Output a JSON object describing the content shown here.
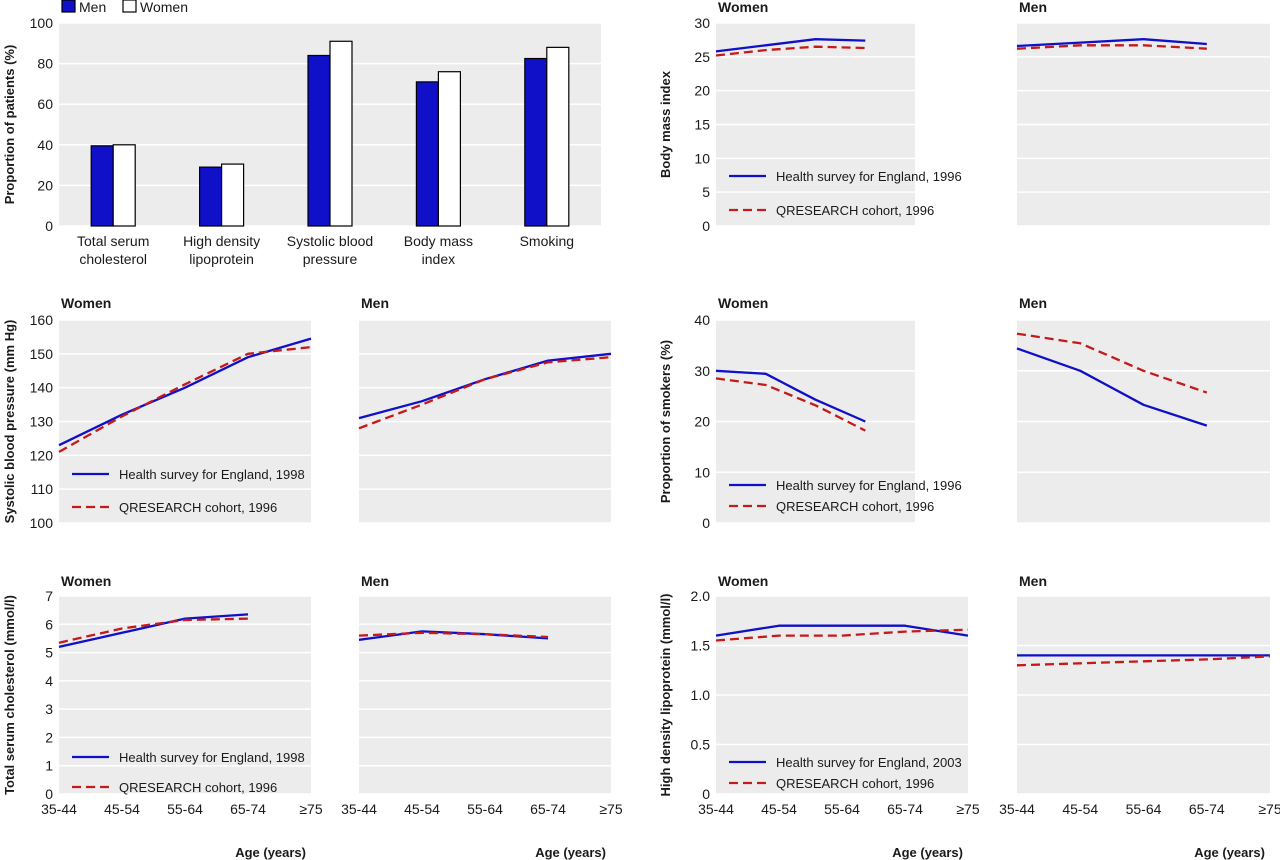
{
  "colors": {
    "plot_bg": "#ececec",
    "grid": "#ffffff",
    "hse_line": "#1010c8",
    "qr_line": "#c41a1a",
    "men_bar": "#1010c8",
    "women_bar": "#ffffff"
  },
  "chart_data": [
    {
      "type": "bar",
      "legend": [
        "Men",
        "Women"
      ],
      "legend_position": "top-left",
      "categories": [
        [
          "Total serum",
          "cholesterol"
        ],
        [
          "High density",
          "lipoprotein"
        ],
        [
          "Systolic blood",
          "pressure"
        ],
        [
          "Body mass",
          "index"
        ],
        [
          "Smoking"
        ]
      ],
      "series": [
        {
          "name": "Men",
          "values": [
            39.5,
            29,
            84,
            71,
            82.5
          ]
        },
        {
          "name": "Women",
          "values": [
            40,
            30.5,
            91,
            76,
            88
          ]
        }
      ],
      "ylabel": "Proportion of patients (%)",
      "ylim": [
        0,
        100
      ],
      "yticks": [
        "0",
        "20",
        "40",
        "60",
        "80",
        "100"
      ],
      "grid": true
    },
    {
      "type": "line",
      "ylabel": "Body mass index",
      "ylim": [
        0,
        30
      ],
      "yticks": [
        "0",
        "5",
        "10",
        "15",
        "20",
        "25",
        "30"
      ],
      "x": [
        "35-44",
        "45-54",
        "55-64",
        "65-74",
        "≥75"
      ],
      "xlabel": "",
      "legend_position": "bottom-left",
      "panels": [
        {
          "title": "Women",
          "series": [
            {
              "name": "Health survey for England, 1996",
              "values": [
                25.8,
                26.7,
                27.6,
                27.4
              ]
            },
            {
              "name": "QRESEARCH cohort, 1996",
              "values": [
                25.2,
                26.0,
                26.5,
                26.3
              ]
            }
          ]
        },
        {
          "title": "Men",
          "series": [
            {
              "name": "Health survey for England, 1996",
              "values": [
                26.6,
                27.1,
                27.6,
                26.9
              ]
            },
            {
              "name": "QRESEARCH cohort, 1996",
              "values": [
                26.2,
                26.7,
                26.7,
                26.2
              ]
            }
          ]
        }
      ]
    },
    {
      "type": "line",
      "ylabel": "Systolic blood pressure (mm Hg)",
      "ylim": [
        100,
        160
      ],
      "yticks": [
        "100",
        "110",
        "120",
        "130",
        "140",
        "150",
        "160"
      ],
      "x": [
        "35-44",
        "45-54",
        "55-64",
        "65-74",
        "≥75"
      ],
      "xlabel": "",
      "legend_position": "bottom-left",
      "panels": [
        {
          "title": "Women",
          "series": [
            {
              "name": "Health survey for England, 1998",
              "values": [
                123,
                132,
                140,
                149,
                154.5
              ]
            },
            {
              "name": "QRESEARCH cohort, 1996",
              "values": [
                121,
                131.5,
                141,
                150,
                152
              ]
            }
          ]
        },
        {
          "title": "Men",
          "series": [
            {
              "name": "Health survey for England, 1998",
              "values": [
                131,
                136,
                142.5,
                148,
                150
              ]
            },
            {
              "name": "QRESEARCH cohort, 1996",
              "values": [
                128,
                135,
                142.5,
                147.5,
                149
              ]
            }
          ]
        }
      ]
    },
    {
      "type": "line",
      "ylabel": "Proportion of smokers (%)",
      "ylim": [
        0,
        40
      ],
      "yticks": [
        "0",
        "10",
        "20",
        "30",
        "40"
      ],
      "x": [
        "35-44",
        "45-54",
        "55-64",
        "65-74",
        "≥75"
      ],
      "xlabel": "",
      "legend_position": "bottom-left",
      "panels": [
        {
          "title": "Women",
          "series": [
            {
              "name": "Health survey for England, 1996",
              "values": [
                30,
                29.4,
                24.3,
                20
              ]
            },
            {
              "name": "QRESEARCH cohort, 1996",
              "values": [
                28.5,
                27.2,
                23.2,
                18.2
              ]
            }
          ]
        },
        {
          "title": "Men",
          "series": [
            {
              "name": "Health survey for England, 1996",
              "values": [
                34.4,
                30,
                23.3,
                19.2
              ]
            },
            {
              "name": "QRESEARCH cohort, 1996",
              "values": [
                37.3,
                35.4,
                30,
                25.7
              ]
            }
          ]
        }
      ]
    },
    {
      "type": "line",
      "ylabel": "Total serum cholesterol (mmol/l)",
      "ylim": [
        0,
        7
      ],
      "yticks": [
        "0",
        "1",
        "2",
        "3",
        "4",
        "5",
        "6",
        "7"
      ],
      "x": [
        "35-44",
        "45-54",
        "55-64",
        "65-74",
        "≥75"
      ],
      "xlabel": "Age (years)",
      "legend_position": "bottom-left",
      "panels": [
        {
          "title": "Women",
          "series": [
            {
              "name": "Health survey for England, 1998",
              "values": [
                5.2,
                5.7,
                6.2,
                6.35
              ]
            },
            {
              "name": "QRESEARCH cohort, 1996",
              "values": [
                5.35,
                5.85,
                6.15,
                6.2
              ]
            }
          ]
        },
        {
          "title": "Men",
          "series": [
            {
              "name": "Health survey for England, 1998",
              "values": [
                5.45,
                5.75,
                5.65,
                5.5
              ]
            },
            {
              "name": "QRESEARCH cohort, 1996",
              "values": [
                5.6,
                5.7,
                5.65,
                5.55
              ]
            }
          ]
        }
      ]
    },
    {
      "type": "line",
      "ylabel": "High density lipoprotein (mmol/l)",
      "ylim": [
        0,
        2
      ],
      "yticks": [
        "0",
        "0.5",
        "1.0",
        "1.5",
        "2.0"
      ],
      "x": [
        "35-44",
        "45-54",
        "55-64",
        "65-74",
        "≥75"
      ],
      "xlabel": "Age (years)",
      "legend_position": "bottom-left",
      "panels": [
        {
          "title": "Women",
          "series": [
            {
              "name": "Health survey for England, 2003",
              "values": [
                1.6,
                1.7,
                1.7,
                1.7,
                1.6
              ]
            },
            {
              "name": "QRESEARCH cohort, 1996",
              "values": [
                1.55,
                1.6,
                1.6,
                1.64,
                1.66
              ]
            }
          ]
        },
        {
          "title": "Men",
          "series": [
            {
              "name": "Health survey for England, 2003",
              "values": [
                1.4,
                1.4,
                1.4,
                1.4,
                1.4
              ]
            },
            {
              "name": "QRESEARCH cohort, 1996",
              "values": [
                1.3,
                1.32,
                1.34,
                1.36,
                1.39
              ]
            }
          ]
        }
      ]
    }
  ]
}
